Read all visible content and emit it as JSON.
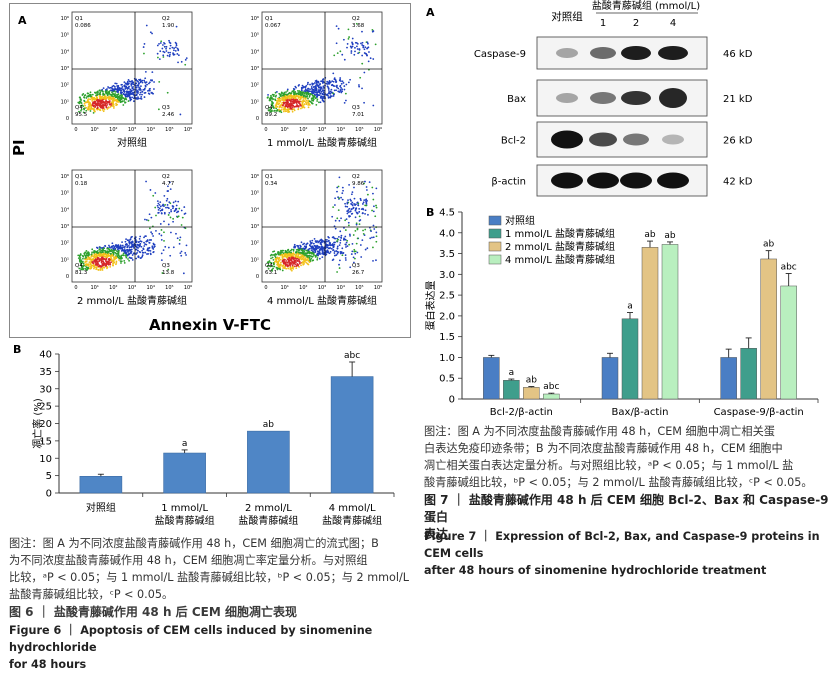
{
  "figure6": {
    "panel_a": {
      "label": "A",
      "ylabel": "PI",
      "xlabel": "Annexin V-FTC",
      "y_ticks": [
        "10⁶",
        "10⁵",
        "10⁴",
        "10³",
        "10²",
        "10¹",
        "0"
      ],
      "x_ticks": [
        "0",
        "10¹",
        "10²",
        "10³",
        "10⁴",
        "10⁵",
        "10⁶"
      ],
      "plots": [
        {
          "name": "对照组",
          "q1_label": "Q1",
          "q1": "0.086",
          "q2_label": "Q2",
          "q2": "1.90",
          "q3_label": "Q3",
          "q3": "2.46",
          "q4_label": "Q4",
          "q4": "95.5"
        },
        {
          "name": "1 mmol/L 盐酸青藤碱组",
          "q1_label": "Q1",
          "q1": "0.067",
          "q2_label": "Q2",
          "q2": "3.68",
          "q3_label": "Q3",
          "q3": "7.01",
          "q4_label": "Q4",
          "q4": "89.2"
        },
        {
          "name": "2 mmol/L 盐酸青藤碱组",
          "q1_label": "Q1",
          "q1": "0.18",
          "q2_label": "Q2",
          "q2": "4.77",
          "q3_label": "Q3",
          "q3": "13.8",
          "q4_label": "Q4",
          "q4": "81.3"
        },
        {
          "name": "4 mmol/L 盐酸青藤碱组",
          "q1_label": "Q1",
          "q1": "0.34",
          "q2_label": "Q2",
          "q2": "9.86",
          "q3_label": "Q3",
          "q3": "26.7",
          "q4_label": "Q4",
          "q4": "63.1"
        }
      ]
    },
    "panel_b_label": "B",
    "caption": {
      "line1": "图注：图 A 为不同浓度盐酸青藤碱作用 48 h，CEM 细胞凋亡的流式图；B",
      "line2": "为不同浓度盐酸青藤碱作用 48 h，CEM 细胞凋亡率定量分析。与对照组",
      "line3": "比较，ᵃP < 0.05；与 1 mmol/L 盐酸青藤碱组比较，ᵇP < 0.05；与 2 mmol/L",
      "line4": "盐酸青藤碱组比较，ᶜP < 0.05。"
    },
    "title_cn": "图 6 ｜ 盐酸青藤碱作用 48 h 后 CEM 细胞凋亡表现",
    "title_en_1": "Figure 6  ｜  Apoptosis of CEM cells induced by sinomenine hydrochloride",
    "title_en_2": "for 48 hours"
  },
  "figure7": {
    "panel_a": {
      "label": "A",
      "header_group": "盐酸青藤碱组 (mmol/L)",
      "lanes": [
        "对照组",
        "1",
        "2",
        "4"
      ],
      "blots": [
        {
          "name": "Caspase-9",
          "size": "46 kD"
        },
        {
          "name": "Bax",
          "size": "21 kD"
        },
        {
          "name": "Bcl-2",
          "size": "26 kD"
        },
        {
          "name": "β-actin",
          "size": "42 kD"
        }
      ]
    },
    "panel_b_label": "B",
    "caption": {
      "line1": "图注：图 A 为不同浓度盐酸青藤碱作用 48 h，CEM 细胞中凋亡相关蛋",
      "line2": "白表达免疫印迹条带；B 为不同浓度盐酸青藤碱作用 48 h，CEM 细胞中",
      "line3": "凋亡相关蛋白表达定量分析。与对照组比较，ᵃP < 0.05；与 1 mmol/L 盐",
      "line4": "酸青藤碱组比较，ᵇP < 0.05；与 2 mmol/L 盐酸青藤碱组比较，ᶜP < 0.05。"
    },
    "title_cn_1": "图 7 ｜ 盐酸青藤碱作用 48 h 后 CEM 细胞 Bcl-2、Bax 和 Caspase-9 蛋白",
    "title_cn_2": "表达",
    "title_en_1": "Figure 7  ｜  Expression of Bcl-2, Bax, and Caspase-9 proteins in CEM cells",
    "title_en_2": "after 48 hours of sinomenine hydrochloride treatment"
  },
  "chart_data": [
    {
      "type": "bar",
      "ylabel": "凋亡率 (%)",
      "ylim": [
        0,
        40
      ],
      "yticks": [
        "0",
        "5",
        "10",
        "15",
        "20",
        "25",
        "30",
        "35",
        "40"
      ],
      "categories": [
        "对照组",
        "1 mmol/L|盐酸青藤碱组",
        "2 mmol/L|盐酸青藤碱组",
        "4 mmol/L|盐酸青藤碱组"
      ],
      "values": [
        4.8,
        11.5,
        17.8,
        33.5
      ],
      "errors": [
        0.6,
        0.9,
        0.0,
        4.2
      ],
      "sig": [
        "",
        "a",
        "ab",
        "abc"
      ],
      "color": "#4f86c6",
      "grid": false
    },
    {
      "type": "bar",
      "ylabel": "蛋白表达量",
      "ylim": [
        0,
        4.5
      ],
      "yticks": [
        "0",
        "0.5",
        "1.0",
        "1.5",
        "2.0",
        "2.5",
        "3.0",
        "3.5",
        "4.0",
        "4.5"
      ],
      "categories": [
        "Bcl-2/β-actin",
        "Bax/β-actin",
        "Caspase-9/β-actin"
      ],
      "series": [
        {
          "name": "对照组",
          "values": [
            1.0,
            1.0,
            1.0
          ],
          "errors": [
            0.05,
            0.1,
            0.2
          ],
          "sig": [
            "",
            "",
            ""
          ],
          "color": "#4a7ec4"
        },
        {
          "name": "1 mmol/L 盐酸青藤碱组",
          "values": [
            0.45,
            1.93,
            1.22
          ],
          "errors": [
            0.03,
            0.15,
            0.25
          ],
          "sig": [
            "a",
            "a",
            ""
          ],
          "color": "#3f9e8c"
        },
        {
          "name": "2 mmol/L 盐酸青藤碱组",
          "values": [
            0.28,
            3.65,
            3.37
          ],
          "errors": [
            0.02,
            0.15,
            0.2
          ],
          "sig": [
            "ab",
            "ab",
            "ab"
          ],
          "color": "#e3c485"
        },
        {
          "name": "4 mmol/L 盐酸青藤碱组",
          "values": [
            0.12,
            3.72,
            2.72
          ],
          "errors": [
            0.02,
            0.06,
            0.3
          ],
          "sig": [
            "abc",
            "ab",
            "abc"
          ],
          "color": "#b9efbf"
        }
      ],
      "legend": "top-left",
      "grid": false
    }
  ]
}
